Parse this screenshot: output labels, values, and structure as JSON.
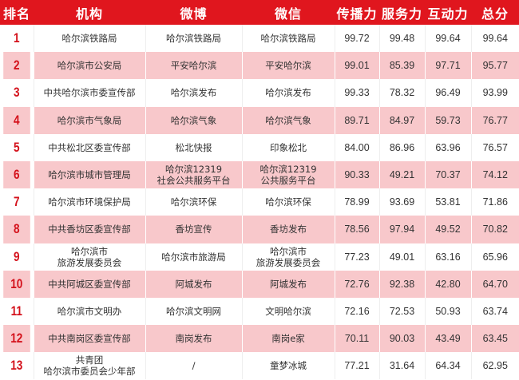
{
  "headers": [
    "排名",
    "机构",
    "微博",
    "微信",
    "传播力",
    "服务力",
    "互动力",
    "总分"
  ],
  "rows": [
    [
      "1",
      "哈尔滨铁路局",
      "哈尔滨铁路局",
      "哈尔滨铁路局",
      "99.72",
      "99.48",
      "99.64",
      "99.64"
    ],
    [
      "2",
      "哈尔滨市公安局",
      "平安哈尔滨",
      "平安哈尔滨",
      "99.01",
      "85.39",
      "97.71",
      "95.77"
    ],
    [
      "3",
      "中共哈尔滨市委宣传部",
      "哈尔滨发布",
      "哈尔滨发布",
      "99.33",
      "78.32",
      "96.49",
      "93.99"
    ],
    [
      "4",
      "哈尔滨市气象局",
      "哈尔滨气象",
      "哈尔滨气象",
      "89.71",
      "84.97",
      "59.73",
      "76.77"
    ],
    [
      "5",
      "中共松北区委宣传部",
      "松北快报",
      "印象松北",
      "84.00",
      "86.96",
      "63.96",
      "76.57"
    ],
    [
      "6",
      "哈尔滨市城市管理局",
      "哈尔滨12319\n社会公共服务平台",
      "哈尔滨12319\n公共服务平台",
      "90.33",
      "49.21",
      "70.37",
      "74.12"
    ],
    [
      "7",
      "哈尔滨市环境保护局",
      "哈尔滨环保",
      "哈尔滨环保",
      "78.99",
      "93.69",
      "53.81",
      "71.86"
    ],
    [
      "8",
      "中共香坊区委宣传部",
      "香坊宣传",
      "香坊发布",
      "78.56",
      "97.94",
      "49.52",
      "70.82"
    ],
    [
      "9",
      "哈尔滨市\n旅游发展委员会",
      "哈尔滨市旅游局",
      "哈尔滨市\n旅游发展委员会",
      "77.23",
      "49.01",
      "63.16",
      "65.96"
    ],
    [
      "10",
      "中共阿城区委宣传部",
      "阿城发布",
      "阿城发布",
      "72.76",
      "92.38",
      "42.80",
      "64.70"
    ],
    [
      "11",
      "哈尔滨市文明办",
      "哈尔滨文明网",
      "文明哈尔滨",
      "72.16",
      "72.53",
      "50.93",
      "63.74"
    ],
    [
      "12",
      "中共南岗区委宣传部",
      "南岗发布",
      "南岗e家",
      "70.11",
      "90.03",
      "43.49",
      "63.45"
    ],
    [
      "13",
      "共青团\n哈尔滨市委员会少年部",
      "/",
      "童梦冰城",
      "77.21",
      "31.64",
      "64.34",
      "62.95"
    ]
  ],
  "colors": {
    "header": "#e0161e",
    "stripe": "#f8c8cb",
    "rank": "#d4111b"
  }
}
